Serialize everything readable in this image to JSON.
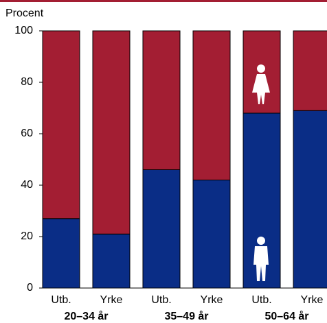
{
  "chart_data": {
    "type": "stacked_bar",
    "y_label": "Procent",
    "categories": [
      "Utb.",
      "Yrke",
      "Utb.",
      "Yrke",
      "Utb.",
      "Yrke"
    ],
    "groups": [
      "20–34 år",
      "35–49 år",
      "50–64 år"
    ],
    "series": [
      {
        "color": "#0a2d86",
        "values": [
          27,
          21,
          46,
          42,
          68,
          69
        ]
      },
      {
        "color": "#a31e33",
        "values": [
          73,
          79,
          54,
          58,
          32,
          31
        ]
      }
    ],
    "ylim": [
      0,
      100
    ],
    "yticks": [
      0,
      20,
      40,
      60,
      80,
      100
    ]
  }
}
